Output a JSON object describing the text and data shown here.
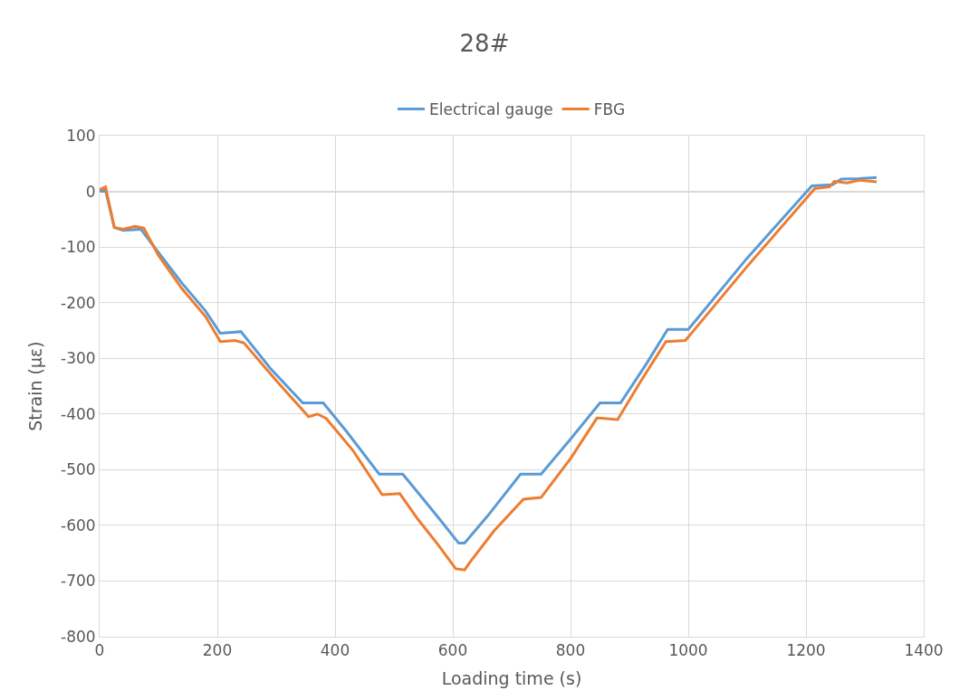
{
  "chart_data": {
    "type": "line",
    "title": "28#",
    "xlabel": "Loading time (s)",
    "ylabel": "Strain (με)",
    "xlim": [
      0,
      1400
    ],
    "xticks": [
      0,
      200,
      400,
      600,
      800,
      1000,
      1200,
      1400
    ],
    "ylim": [
      -800,
      100
    ],
    "yticks": [
      -800,
      -700,
      -600,
      -500,
      -400,
      -300,
      -200,
      -100,
      0,
      100
    ],
    "grid": true,
    "legend": "top",
    "marker": "none",
    "line_style": "solid",
    "series": [
      {
        "name": "Electrical gauge",
        "color": "#5b9bd5",
        "x": [
          0,
          10,
          25,
          40,
          70,
          100,
          140,
          180,
          205,
          240,
          290,
          345,
          380,
          420,
          475,
          515,
          540,
          580,
          610,
          620,
          660,
          715,
          750,
          800,
          850,
          885,
          930,
          965,
          1000,
          1100,
          1210,
          1245,
          1260,
          1290,
          1320
        ],
        "values": [
          0,
          2,
          -65,
          -70,
          -68,
          -110,
          -165,
          -215,
          -255,
          -252,
          -318,
          -380,
          -380,
          -432,
          -508,
          -508,
          -540,
          -592,
          -632,
          -632,
          -582,
          -508,
          -508,
          -445,
          -380,
          -380,
          -308,
          -248,
          -248,
          -120,
          10,
          12,
          22,
          23,
          25
        ]
      },
      {
        "name": "FBG",
        "color": "#ed7d31",
        "x": [
          0,
          10,
          25,
          40,
          60,
          75,
          100,
          140,
          180,
          205,
          230,
          245,
          300,
          355,
          370,
          385,
          430,
          480,
          510,
          540,
          575,
          605,
          620,
          630,
          670,
          720,
          750,
          800,
          845,
          880,
          920,
          962,
          995,
          1100,
          1215,
          1240,
          1248,
          1270,
          1290,
          1320
        ],
        "values": [
          3,
          8,
          -65,
          -68,
          -63,
          -66,
          -115,
          -175,
          -225,
          -270,
          -268,
          -272,
          -340,
          -405,
          -400,
          -408,
          -465,
          -545,
          -543,
          -588,
          -635,
          -678,
          -680,
          -665,
          -610,
          -553,
          -550,
          -480,
          -407,
          -410,
          -340,
          -270,
          -268,
          -135,
          5,
          8,
          18,
          15,
          20,
          17
        ]
      }
    ]
  }
}
